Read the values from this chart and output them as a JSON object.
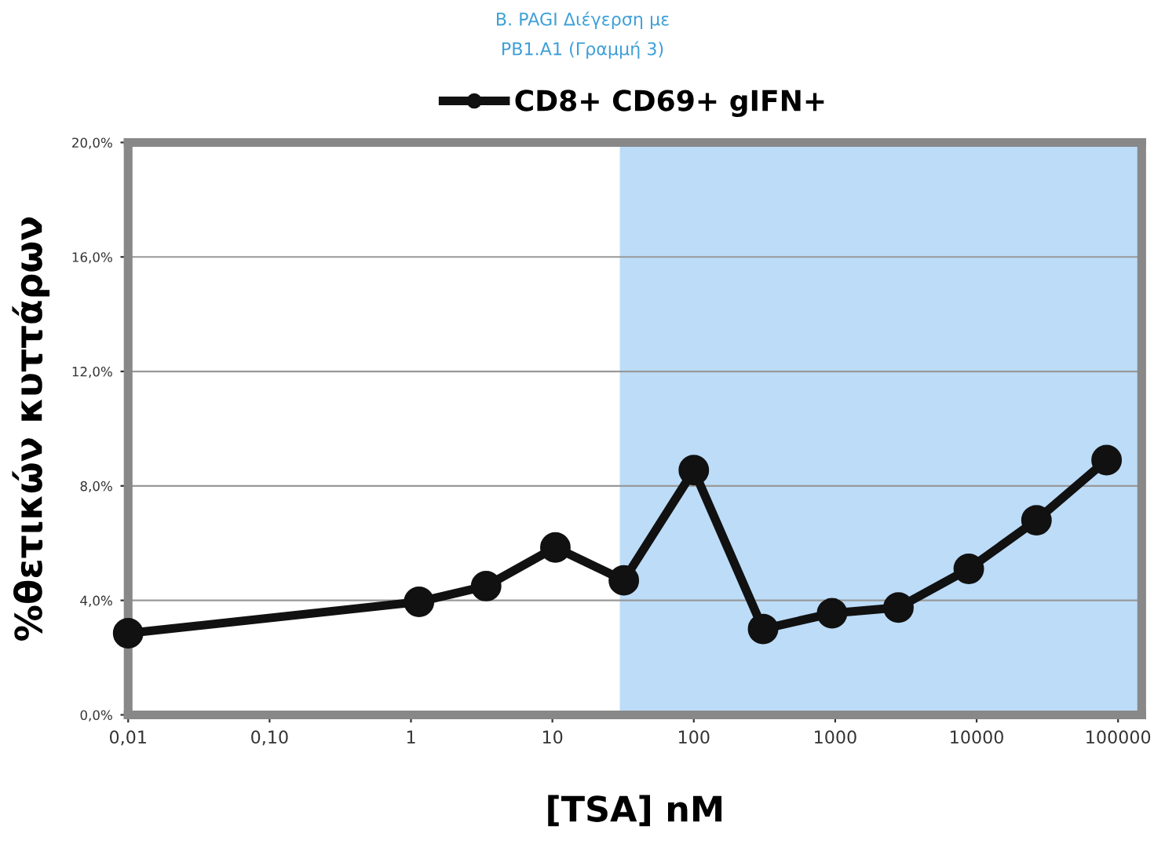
{
  "chart_data": {
    "type": "line",
    "title": "B. PAGI Διέγερση με",
    "subtitle": "PB1.A1 (Γραμμή 3)",
    "xlabel": "[TSA] nM",
    "ylabel": "%θετικών κυττάρων",
    "x": [
      0.01,
      1.14,
      3.4,
      10.5,
      32,
      100,
      309,
      950,
      2800,
      8800,
      26500,
      83000
    ],
    "series": [
      {
        "name": "CD8+ CD69+ gIFN+",
        "color": "#111111",
        "values": [
          2.85,
          3.95,
          4.5,
          5.85,
          4.7,
          8.55,
          3.0,
          3.55,
          3.75,
          5.1,
          6.8,
          8.9
        ]
      }
    ],
    "log": "x",
    "xlim": [
      0.01,
      147000
    ],
    "xticks": [
      {
        "value": 0.01,
        "label": "0,01"
      },
      {
        "value": 0.1,
        "label": "0,10"
      },
      1,
      10,
      100,
      1000,
      10000,
      100000
    ],
    "ylim": [
      0,
      20
    ],
    "yticks": [
      {
        "value": 0,
        "label": "0,0%"
      },
      {
        "value": 4,
        "label": "4,0%"
      },
      {
        "value": 8,
        "label": "8,0%"
      },
      {
        "value": 12,
        "label": "12,0%"
      },
      {
        "value": 16,
        "label": "16,0%"
      },
      {
        "value": 20,
        "label": "20,0%"
      }
    ],
    "bands": [
      {
        "axis": "x",
        "from": 30,
        "to": 147000,
        "color": "#bcdcf8"
      }
    ],
    "grid": "y",
    "legend": "top",
    "marker": "circle",
    "line_style": "solid"
  }
}
